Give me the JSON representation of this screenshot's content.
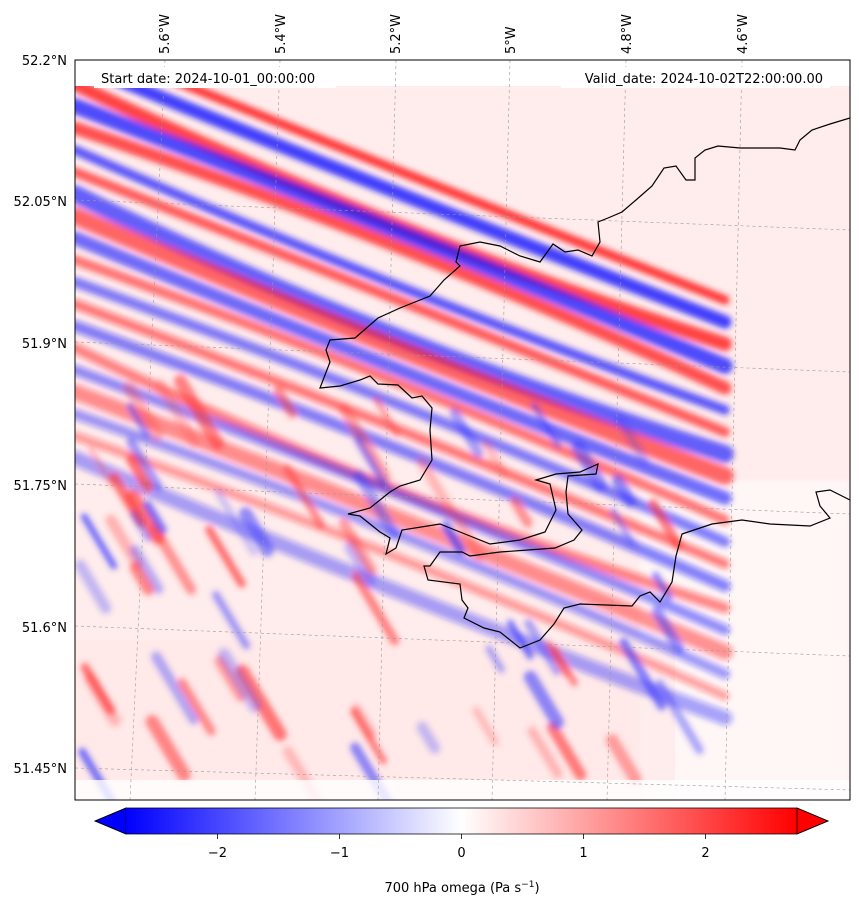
{
  "map": {
    "start_label": "Start date: 2024-10-01_00:00:00",
    "valid_label": "Valid_date: 2024-10-02T22:00:00.00",
    "lon_labels": [
      "5.6°W",
      "5.4°W",
      "5.2°W",
      "5°W",
      "4.8°W",
      "4.6°W"
    ],
    "lat_labels": [
      "52.2°N",
      "52.05°N",
      "51.9°N",
      "51.75°N",
      "51.6°N",
      "51.45°N"
    ],
    "field": "700 hPa omega",
    "colormap": "bwr",
    "colors": {
      "negative": "#0000ff",
      "zero": "#ffffff",
      "positive": "#ff0000",
      "coastline": "#000000"
    }
  },
  "colorbar": {
    "label_text": "700 hPa omega (Pa s",
    "label_exp": "−1",
    "label_close": ")",
    "ticks": [
      "−2",
      "−1",
      "0",
      "1",
      "2"
    ],
    "range": [
      -2.75,
      2.75
    ],
    "tick_values": [
      -2,
      -1,
      0,
      1,
      2
    ],
    "extend": "both"
  }
}
